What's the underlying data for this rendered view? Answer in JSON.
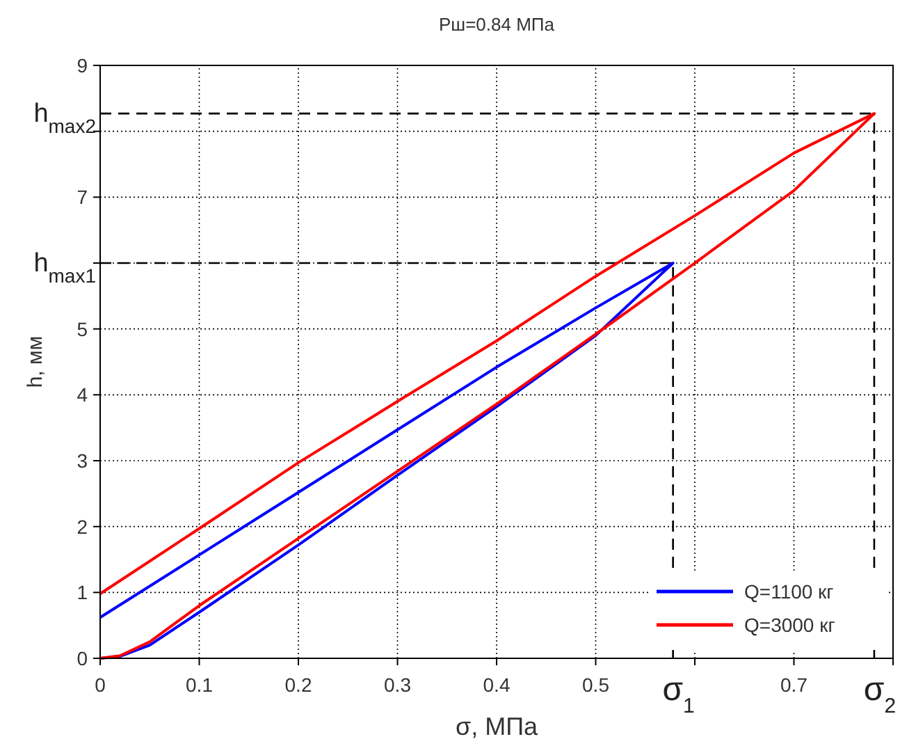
{
  "chart_data": {
    "type": "line",
    "title": "Рш=0.84 МПа",
    "xlabel": "σ, МПа",
    "ylabel": "h, мм",
    "xlim": [
      0,
      0.8
    ],
    "ylim": [
      0,
      9
    ],
    "xticks": [
      0,
      0.1,
      0.2,
      0.3,
      0.4,
      0.5,
      {
        "value": 0.6,
        "label": null
      },
      0.7,
      {
        "value": 0.8,
        "label": null
      }
    ],
    "yticks": [
      0,
      1,
      2,
      3,
      4,
      5,
      {
        "value": 6,
        "label": null
      },
      7,
      {
        "value": 8,
        "label": null
      },
      9
    ],
    "grid": true,
    "legend": "bottom right",
    "line_style": "solid",
    "series": [
      {
        "name": "Q=1100 кг",
        "color": "#0000ff",
        "x": [
          0,
          0.02,
          0.05,
          0.1,
          0.2,
          0.3,
          0.4,
          0.5,
          0.578,
          0.5,
          0.4,
          0.3,
          0.2,
          0.1,
          0
        ],
        "values": [
          0,
          0.03,
          0.2,
          0.7,
          1.72,
          2.78,
          3.82,
          4.9,
          6,
          5.32,
          4.42,
          3.47,
          2.52,
          1.57,
          0.62
        ]
      },
      {
        "name": "Q=3000 кг",
        "color": "#ff0000",
        "x": [
          0,
          0.02,
          0.05,
          0.1,
          0.2,
          0.3,
          0.4,
          0.5,
          0.6,
          0.7,
          0.781,
          0.7,
          0.6,
          0.5,
          0.4,
          0.3,
          0.2,
          0.1,
          0
        ],
        "values": [
          0,
          0.04,
          0.25,
          0.8,
          1.82,
          2.84,
          3.86,
          4.92,
          6.0,
          7.1,
          8.27,
          7.67,
          6.72,
          5.8,
          4.82,
          3.9,
          2.97,
          1.97,
          0.98
        ]
      }
    ],
    "ref_lines": [
      {
        "axis": "y",
        "value": 6,
        "label": "h$_{max1}$",
        "line_style": "dashed",
        "color": "#000000"
      },
      {
        "axis": "y",
        "value": 8.27,
        "label": "h$_{max2}$",
        "line_style": "dashed",
        "color": "#000000"
      },
      {
        "axis": "x",
        "value": 0.578,
        "label": "σ$_{1}$",
        "line_style": "dashed",
        "color": "#000000"
      },
      {
        "axis": "x",
        "value": 0.781,
        "label": "σ$_{2}$",
        "line_style": "dashed",
        "color": "#000000"
      }
    ]
  }
}
